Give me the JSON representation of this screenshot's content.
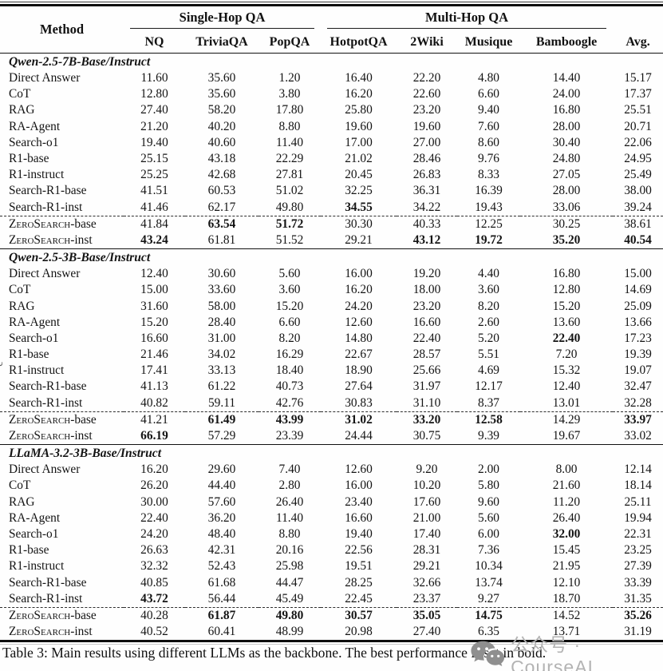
{
  "header": {
    "method_label": "Method",
    "groups": [
      {
        "label": "Single-Hop QA",
        "span": 3
      },
      {
        "label": "Multi-Hop QA",
        "span": 4
      }
    ],
    "columns": [
      "NQ",
      "TriviaQA",
      "PopQA",
      "HotpotQA",
      "2Wiki",
      "Musique",
      "Bamboogle",
      "Avg."
    ]
  },
  "sections": [
    {
      "title": "Qwen-2.5-7B-Base/Instruct",
      "rows": [
        {
          "method": "Direct Answer",
          "values": [
            "11.60",
            "35.60",
            "1.20",
            "16.40",
            "22.20",
            "4.80",
            "14.40",
            "15.17"
          ],
          "bold": []
        },
        {
          "method": "CoT",
          "values": [
            "12.80",
            "35.60",
            "3.80",
            "16.20",
            "22.60",
            "6.60",
            "24.00",
            "17.37"
          ],
          "bold": []
        },
        {
          "method": "RAG",
          "values": [
            "27.40",
            "58.20",
            "17.80",
            "25.80",
            "23.20",
            "9.40",
            "16.80",
            "25.51"
          ],
          "bold": []
        },
        {
          "method": "RA-Agent",
          "values": [
            "21.20",
            "40.20",
            "8.80",
            "19.60",
            "19.60",
            "7.60",
            "28.00",
            "20.71"
          ],
          "bold": []
        },
        {
          "method": "Search-o1",
          "values": [
            "19.40",
            "40.60",
            "11.40",
            "17.00",
            "27.00",
            "8.60",
            "30.40",
            "22.06"
          ],
          "bold": []
        },
        {
          "method": "R1-base",
          "values": [
            "25.15",
            "43.18",
            "22.29",
            "21.02",
            "28.46",
            "9.76",
            "24.80",
            "24.95"
          ],
          "bold": []
        },
        {
          "method": "R1-instruct",
          "values": [
            "25.25",
            "42.68",
            "27.81",
            "20.45",
            "26.83",
            "8.33",
            "27.05",
            "25.49"
          ],
          "bold": []
        },
        {
          "method": "Search-R1-base",
          "values": [
            "41.51",
            "60.53",
            "51.02",
            "32.25",
            "36.31",
            "16.39",
            "28.00",
            "38.00"
          ],
          "bold": []
        },
        {
          "method": "Search-R1-inst",
          "values": [
            "41.46",
            "62.17",
            "49.80",
            "34.55",
            "34.22",
            "19.43",
            "33.06",
            "39.24"
          ],
          "bold": [
            3
          ]
        },
        {
          "method": "ZeroSearch",
          "suffix": "-base",
          "smallcaps": true,
          "dashed": true,
          "values": [
            "41.84",
            "63.54",
            "51.72",
            "30.30",
            "40.33",
            "12.25",
            "30.25",
            "38.61"
          ],
          "bold": [
            1,
            2
          ]
        },
        {
          "method": "ZeroSearch",
          "suffix": "-inst",
          "smallcaps": true,
          "values": [
            "43.24",
            "61.81",
            "51.52",
            "29.21",
            "43.12",
            "19.72",
            "35.20",
            "40.54"
          ],
          "bold": [
            0,
            4,
            5,
            6,
            7
          ]
        }
      ]
    },
    {
      "title": "Qwen-2.5-3B-Base/Instruct",
      "rows": [
        {
          "method": "Direct Answer",
          "values": [
            "12.40",
            "30.60",
            "5.60",
            "16.00",
            "19.20",
            "4.40",
            "16.80",
            "15.00"
          ],
          "bold": []
        },
        {
          "method": "CoT",
          "values": [
            "15.00",
            "33.60",
            "3.60",
            "16.20",
            "18.00",
            "3.60",
            "12.80",
            "14.69"
          ],
          "bold": []
        },
        {
          "method": "RAG",
          "values": [
            "31.60",
            "58.00",
            "15.20",
            "24.20",
            "23.20",
            "8.20",
            "15.20",
            "25.09"
          ],
          "bold": []
        },
        {
          "method": "RA-Agent",
          "values": [
            "15.20",
            "28.40",
            "6.60",
            "12.60",
            "16.60",
            "2.60",
            "13.60",
            "13.66"
          ],
          "bold": []
        },
        {
          "method": "Search-o1",
          "values": [
            "16.60",
            "31.00",
            "8.20",
            "14.80",
            "22.40",
            "5.20",
            "22.40",
            "17.23"
          ],
          "bold": [
            6
          ]
        },
        {
          "method": "R1-base",
          "values": [
            "21.46",
            "34.02",
            "16.29",
            "22.67",
            "28.57",
            "5.51",
            "7.20",
            "19.39"
          ],
          "bold": []
        },
        {
          "method": "R1-instruct",
          "values": [
            "17.41",
            "33.13",
            "18.40",
            "18.90",
            "25.66",
            "4.69",
            "15.32",
            "19.07"
          ],
          "bold": []
        },
        {
          "method": "Search-R1-base",
          "values": [
            "41.13",
            "61.22",
            "40.73",
            "27.64",
            "31.97",
            "12.17",
            "12.40",
            "32.47"
          ],
          "bold": []
        },
        {
          "method": "Search-R1-inst",
          "values": [
            "40.82",
            "59.11",
            "42.76",
            "30.83",
            "31.10",
            "8.37",
            "13.01",
            "32.28"
          ],
          "bold": []
        },
        {
          "method": "ZeroSearch",
          "suffix": "-base",
          "smallcaps": true,
          "dashed": true,
          "values": [
            "41.21",
            "61.49",
            "43.99",
            "31.02",
            "33.20",
            "12.58",
            "14.29",
            "33.97"
          ],
          "bold": [
            1,
            2,
            3,
            4,
            5,
            7
          ]
        },
        {
          "method": "ZeroSearch",
          "suffix": "-inst",
          "smallcaps": true,
          "values": [
            "66.19",
            "57.29",
            "23.39",
            "24.44",
            "30.75",
            "9.39",
            "19.67",
            "33.02"
          ],
          "bold": [
            0
          ]
        }
      ]
    },
    {
      "title": "LLaMA-3.2-3B-Base/Instruct",
      "rows": [
        {
          "method": "Direct Answer",
          "values": [
            "16.20",
            "29.60",
            "7.40",
            "12.60",
            "9.20",
            "2.00",
            "8.00",
            "12.14"
          ],
          "bold": []
        },
        {
          "method": "CoT",
          "values": [
            "26.20",
            "44.40",
            "2.80",
            "16.00",
            "10.20",
            "5.80",
            "21.60",
            "18.14"
          ],
          "bold": []
        },
        {
          "method": "RAG",
          "values": [
            "30.00",
            "57.60",
            "26.40",
            "23.40",
            "17.60",
            "9.60",
            "11.20",
            "25.11"
          ],
          "bold": []
        },
        {
          "method": "RA-Agent",
          "values": [
            "22.40",
            "36.20",
            "11.40",
            "16.60",
            "21.00",
            "5.60",
            "26.40",
            "19.94"
          ],
          "bold": []
        },
        {
          "method": "Search-o1",
          "values": [
            "24.20",
            "48.40",
            "8.80",
            "19.40",
            "17.40",
            "6.00",
            "32.00",
            "22.31"
          ],
          "bold": [
            6
          ]
        },
        {
          "method": "R1-base",
          "values": [
            "26.63",
            "42.31",
            "20.16",
            "22.56",
            "28.31",
            "7.36",
            "15.45",
            "23.25"
          ],
          "bold": []
        },
        {
          "method": "R1-instruct",
          "values": [
            "32.32",
            "52.43",
            "25.98",
            "19.51",
            "29.21",
            "10.34",
            "21.95",
            "27.39"
          ],
          "bold": []
        },
        {
          "method": "Search-R1-base",
          "values": [
            "40.85",
            "61.68",
            "44.47",
            "28.25",
            "32.66",
            "13.74",
            "12.10",
            "33.39"
          ],
          "bold": []
        },
        {
          "method": "Search-R1-inst",
          "values": [
            "43.72",
            "56.44",
            "45.49",
            "22.45",
            "23.37",
            "9.27",
            "18.70",
            "31.35"
          ],
          "bold": [
            0
          ]
        },
        {
          "method": "ZeroSearch",
          "suffix": "-base",
          "smallcaps": true,
          "dashed": true,
          "values": [
            "40.28",
            "61.87",
            "49.80",
            "30.57",
            "35.05",
            "14.75",
            "14.52",
            "35.26"
          ],
          "bold": [
            1,
            2,
            3,
            4,
            5,
            7
          ]
        },
        {
          "method": "ZeroSearch",
          "suffix": "-inst",
          "smallcaps": true,
          "values": [
            "40.52",
            "60.41",
            "48.99",
            "20.98",
            "27.40",
            "6.35",
            "13.71",
            "31.19"
          ],
          "bold": []
        }
      ]
    }
  ],
  "caption": "Table 3: Main results using different LLMs as the backbone. The best performance is set in bold.",
  "watermark": {
    "text": "公众号 · CourseAI",
    "icon_color": "#8f8f8f",
    "text_color": "#b3b3b3"
  },
  "edge_artifact": "ê"
}
